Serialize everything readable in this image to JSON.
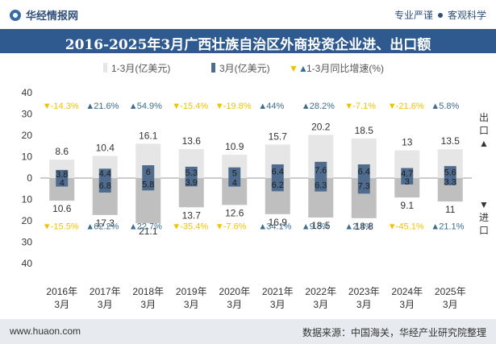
{
  "header": {
    "brand": "华经情报网",
    "slogan_a": "专业严谨",
    "slogan_b": "客观科学"
  },
  "footer": {
    "site": "www.huaon.com",
    "source": "数据来源：中国海关，华经产业研究院整理"
  },
  "colors": {
    "export_bar": "#e6e6e6",
    "import_bar": "#bfbfbf",
    "period_bar": "#4f6c8f",
    "growth_up": "#3a6e8f",
    "growth_down": "#f2c200",
    "title_bg": "#2f5a8f"
  },
  "chart_data": {
    "type": "bar",
    "title": "2016-2025年3月广西壮族自治区外商投资企业进、出口额",
    "legend": [
      "1-3月(亿美元)",
      "3月(亿美元)",
      "1-3月同比增速(%)"
    ],
    "categories": [
      "2016年\n3月",
      "2017年\n3月",
      "2018年\n3月",
      "2019年\n3月",
      "2020年\n3月",
      "2021年\n3月",
      "2022年\n3月",
      "2023年\n3月",
      "2024年\n3月",
      "2025年\n3月"
    ],
    "ylim": [
      -40,
      40
    ],
    "yticks": [
      40,
      30,
      20,
      10,
      0,
      10,
      20,
      30,
      40
    ],
    "export_label": "出口▲",
    "import_label": "▼进口",
    "series": [
      {
        "name": "出口 1-3月(亿美元)",
        "values": [
          8.6,
          10.4,
          16.1,
          13.6,
          10.9,
          15.7,
          20.2,
          18.5,
          13,
          13.5
        ]
      },
      {
        "name": "出口 3月(亿美元)",
        "values": [
          3.8,
          4.4,
          6,
          5.3,
          5,
          6.4,
          7.6,
          6.4,
          4.7,
          5.6
        ]
      },
      {
        "name": "进口 1-3月(亿美元)",
        "values": [
          10.6,
          17.3,
          21.1,
          13.7,
          12.6,
          16.9,
          18.5,
          18.8,
          9.1,
          11
        ]
      },
      {
        "name": "进口 3月(亿美元)",
        "values": [
          4,
          6.8,
          5.8,
          3.9,
          4,
          6.2,
          6.3,
          7.3,
          3,
          3.3
        ]
      },
      {
        "name": "出口 1-3月同比增速(%)",
        "values": [
          -14.3,
          21.6,
          54.9,
          -15.4,
          -19.8,
          44,
          28.2,
          -7.1,
          -21.6,
          5.8
        ]
      },
      {
        "name": "进口 1-3月同比增速(%)",
        "values": [
          -15.5,
          62.2,
          22.7,
          -35.4,
          -7.6,
          34.1,
          9.3,
          2.4,
          -45.1,
          21.1
        ]
      }
    ],
    "export_growth_labels": [
      "-14.3%",
      "21.6%",
      "54.9%",
      "-15.4%",
      "-19.8%",
      "44%",
      "28.2%",
      "-7.1%",
      "-21.6%",
      "5.8%"
    ],
    "import_growth_labels": [
      "-15.5%",
      "62.2%",
      "22.7%",
      "-35.4%",
      "-7.6%",
      "34.1%",
      "9.3%",
      "2.4%",
      "-45.1%",
      "21.1%"
    ]
  }
}
